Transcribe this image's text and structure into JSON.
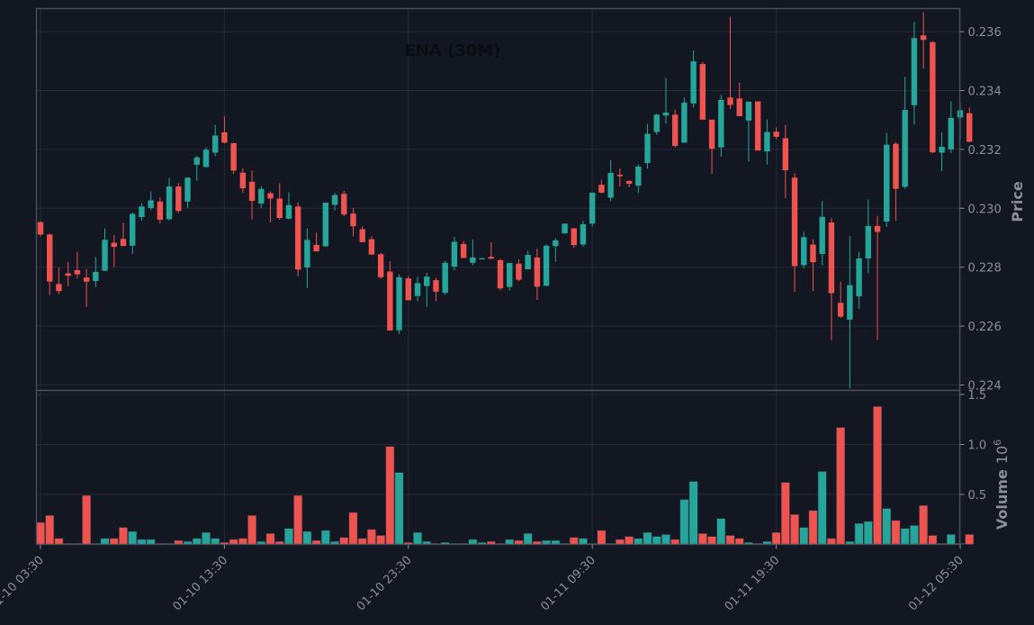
{
  "chart_data": {
    "type": "candlestick",
    "title": "ENA (30M)",
    "price_axis": {
      "label": "Price",
      "ticks": [
        "0.224",
        "0.226",
        "0.228",
        "0.230",
        "0.232",
        "0.234",
        "0.236"
      ],
      "ylim": [
        0.2239,
        0.2369
      ]
    },
    "volume_axis": {
      "label": "Volume",
      "exponent_label": "10",
      "exponent": "6",
      "ticks": [
        "0.5",
        "1.0",
        "1.5"
      ],
      "ylim": [
        0,
        1.5
      ]
    },
    "x_ticks": [
      "01-10 03:30",
      "01-10 13:30",
      "01-10 23:30",
      "01-11 09:30",
      "01-11 19:30",
      "01-12 05:30"
    ],
    "x_tick_index": [
      0,
      20,
      40,
      60,
      80,
      100
    ],
    "grid": true,
    "colors": {
      "up": "#26a69a",
      "down": "#ef5350",
      "background": "#131722",
      "grid": "#232a36",
      "frame": "#4a4f5a"
    },
    "candles": [
      [
        0.22953,
        0.22957,
        0.22905,
        0.22911,
        0.22
      ],
      [
        0.22911,
        0.22915,
        0.22705,
        0.22751,
        0.29
      ],
      [
        0.22743,
        0.22799,
        0.22709,
        0.22719,
        0.06
      ],
      [
        0.22779,
        0.22818,
        0.22735,
        0.22771,
        0.01
      ],
      [
        0.2279,
        0.22852,
        0.22762,
        0.22776,
        0.01
      ],
      [
        0.22765,
        0.22794,
        0.22665,
        0.22751,
        0.49
      ],
      [
        0.22753,
        0.22835,
        0.22732,
        0.22784,
        0.01
      ],
      [
        0.22788,
        0.22932,
        0.22787,
        0.22893,
        0.06
      ],
      [
        0.22883,
        0.22909,
        0.22801,
        0.22869,
        0.06
      ],
      [
        0.22896,
        0.22951,
        0.22872,
        0.22872,
        0.17
      ],
      [
        0.22873,
        0.22986,
        0.22845,
        0.22981,
        0.13
      ],
      [
        0.2297,
        0.23017,
        0.22958,
        0.23006,
        0.05
      ],
      [
        0.23001,
        0.23057,
        0.22993,
        0.23027,
        0.05
      ],
      [
        0.23023,
        0.23036,
        0.22948,
        0.22961,
        0.01
      ],
      [
        0.22963,
        0.23103,
        0.22959,
        0.23074,
        0.01
      ],
      [
        0.23074,
        0.23086,
        0.22984,
        0.22991,
        0.04
      ],
      [
        0.23023,
        0.23105,
        0.23001,
        0.23104,
        0.03
      ],
      [
        0.23148,
        0.23178,
        0.23094,
        0.23173,
        0.06
      ],
      [
        0.2314,
        0.23207,
        0.23146,
        0.23199,
        0.12
      ],
      [
        0.23189,
        0.23283,
        0.23177,
        0.23247,
        0.06
      ],
      [
        0.23258,
        0.23313,
        0.2322,
        0.23223,
        0.02
      ],
      [
        0.23221,
        0.23223,
        0.23117,
        0.23128,
        0.05
      ],
      [
        0.23121,
        0.23136,
        0.23052,
        0.23068,
        0.06
      ],
      [
        0.2309,
        0.23128,
        0.22962,
        0.23025,
        0.29
      ],
      [
        0.23016,
        0.23075,
        0.23001,
        0.23066,
        0.03
      ],
      [
        0.23051,
        0.23058,
        0.22952,
        0.23033,
        0.11
      ],
      [
        0.23033,
        0.23085,
        0.22961,
        0.22967,
        0.03
      ],
      [
        0.22965,
        0.23055,
        0.22962,
        0.23011,
        0.16
      ],
      [
        0.23006,
        0.2302,
        0.2277,
        0.22792,
        0.49
      ],
      [
        0.22799,
        0.22932,
        0.22729,
        0.22893,
        0.13
      ],
      [
        0.22876,
        0.22918,
        0.22853,
        0.22854,
        0.04
      ],
      [
        0.22871,
        0.23019,
        0.22869,
        0.23019,
        0.14
      ],
      [
        0.23012,
        0.23052,
        0.22993,
        0.23045,
        0.03
      ],
      [
        0.23049,
        0.23059,
        0.22973,
        0.22979,
        0.07
      ],
      [
        0.22982,
        0.23001,
        0.22905,
        0.22939,
        0.32
      ],
      [
        0.22929,
        0.22939,
        0.22884,
        0.22885,
        0.06
      ],
      [
        0.22895,
        0.22905,
        0.22842,
        0.22843,
        0.15
      ],
      [
        0.22844,
        0.22849,
        0.2276,
        0.22766,
        0.09
      ],
      [
        0.22785,
        0.2282,
        0.22584,
        0.22585,
        0.98
      ],
      [
        0.22586,
        0.22776,
        0.22574,
        0.22766,
        0.72
      ],
      [
        0.22762,
        0.2277,
        0.22686,
        0.22688,
        0.02
      ],
      [
        0.22702,
        0.22768,
        0.22685,
        0.22746,
        0.12
      ],
      [
        0.22736,
        0.22781,
        0.22665,
        0.22768,
        0.03
      ],
      [
        0.22756,
        0.22764,
        0.22684,
        0.22717,
        0.01
      ],
      [
        0.22713,
        0.22822,
        0.22706,
        0.22815,
        0.02
      ],
      [
        0.22802,
        0.22903,
        0.22789,
        0.22886,
        0.01
      ],
      [
        0.22879,
        0.22888,
        0.22832,
        0.22831,
        0.01
      ],
      [
        0.22815,
        0.22894,
        0.22807,
        0.22833,
        0.05
      ],
      [
        0.2283,
        0.22832,
        0.22827,
        0.2283,
        0.02
      ],
      [
        0.22835,
        0.22885,
        0.22827,
        0.22829,
        0.03
      ],
      [
        0.22824,
        0.22828,
        0.22721,
        0.22728,
        0.01
      ],
      [
        0.22733,
        0.22815,
        0.22721,
        0.22814,
        0.05
      ],
      [
        0.22812,
        0.22827,
        0.22752,
        0.22757,
        0.04
      ],
      [
        0.22793,
        0.22856,
        0.22793,
        0.22842,
        0.11
      ],
      [
        0.22833,
        0.22864,
        0.22689,
        0.22734,
        0.03
      ],
      [
        0.22737,
        0.22878,
        0.22735,
        0.22873,
        0.04
      ],
      [
        0.22872,
        0.22898,
        0.22819,
        0.22891,
        0.04
      ],
      [
        0.22915,
        0.22948,
        0.22914,
        0.22948,
        0.01
      ],
      [
        0.22932,
        0.22933,
        0.22866,
        0.22875,
        0.07
      ],
      [
        0.22877,
        0.22957,
        0.2287,
        0.22946,
        0.06
      ],
      [
        0.22948,
        0.23054,
        0.22938,
        0.23053,
        0.01
      ],
      [
        0.2308,
        0.23097,
        0.23051,
        0.23053,
        0.14
      ],
      [
        0.23036,
        0.23164,
        0.23024,
        0.2312,
        0.01
      ],
      [
        0.23114,
        0.23136,
        0.23074,
        0.23109,
        0.05
      ],
      [
        0.23093,
        0.23095,
        0.23071,
        0.23083,
        0.08
      ],
      [
        0.23077,
        0.23148,
        0.23052,
        0.23142,
        0.06
      ],
      [
        0.23154,
        0.23286,
        0.23135,
        0.23253,
        0.12
      ],
      [
        0.23259,
        0.23321,
        0.2325,
        0.23318,
        0.08
      ],
      [
        0.23315,
        0.23442,
        0.23287,
        0.23325,
        0.1
      ],
      [
        0.23318,
        0.23335,
        0.23206,
        0.23212,
        0.05
      ],
      [
        0.23223,
        0.23376,
        0.23225,
        0.23359,
        0.45
      ],
      [
        0.23356,
        0.23536,
        0.23342,
        0.23499,
        0.63
      ],
      [
        0.2349,
        0.23497,
        0.233,
        0.23301,
        0.11
      ],
      [
        0.23301,
        0.233,
        0.23117,
        0.23202,
        0.08
      ],
      [
        0.23207,
        0.23385,
        0.23175,
        0.23368,
        0.26
      ],
      [
        0.23376,
        0.2365,
        0.23337,
        0.23351,
        0.09
      ],
      [
        0.23373,
        0.23427,
        0.23312,
        0.23313,
        0.06
      ],
      [
        0.23298,
        0.23361,
        0.23159,
        0.23362,
        0.02
      ],
      [
        0.23363,
        0.23358,
        0.23203,
        0.23196,
        0.01
      ],
      [
        0.23193,
        0.23302,
        0.23149,
        0.23259,
        0.03
      ],
      [
        0.2326,
        0.23274,
        0.23235,
        0.23243,
        0.12
      ],
      [
        0.23238,
        0.23283,
        0.23034,
        0.23129,
        0.62
      ],
      [
        0.23104,
        0.23119,
        0.22716,
        0.22804,
        0.3
      ],
      [
        0.22807,
        0.2292,
        0.22796,
        0.22902,
        0.17
      ],
      [
        0.22877,
        0.22895,
        0.22719,
        0.22817,
        0.34
      ],
      [
        0.22845,
        0.23025,
        0.22806,
        0.22971,
        0.73
      ],
      [
        0.22952,
        0.22966,
        0.22552,
        0.22712,
        0.06
      ],
      [
        0.22679,
        0.22751,
        0.22628,
        0.22632,
        1.17
      ],
      [
        0.22622,
        0.22906,
        0.22389,
        0.22739,
        0.03
      ],
      [
        0.22701,
        0.22852,
        0.22659,
        0.2283,
        0.21
      ],
      [
        0.2283,
        0.2303,
        0.2278,
        0.2294,
        0.23
      ],
      [
        0.2294,
        0.22974,
        0.22553,
        0.2292,
        1.38
      ],
      [
        0.22955,
        0.23256,
        0.22937,
        0.23216,
        0.36
      ],
      [
        0.23219,
        0.23225,
        0.22958,
        0.23066,
        0.24
      ],
      [
        0.23073,
        0.23447,
        0.23067,
        0.23334,
        0.16
      ],
      [
        0.2335,
        0.23633,
        0.23284,
        0.23578,
        0.19
      ],
      [
        0.23587,
        0.23666,
        0.23475,
        0.23572,
        0.39
      ],
      [
        0.23564,
        0.23568,
        0.23187,
        0.2319,
        0.09
      ],
      [
        0.23189,
        0.23258,
        0.23127,
        0.23209,
        0.01
      ],
      [
        0.232,
        0.23363,
        0.23187,
        0.23307,
        0.1
      ],
      [
        0.23308,
        0.23358,
        0.23234,
        0.23333,
        0.01
      ],
      [
        0.23323,
        0.23342,
        0.23224,
        0.23226,
        0.1
      ]
    ]
  }
}
